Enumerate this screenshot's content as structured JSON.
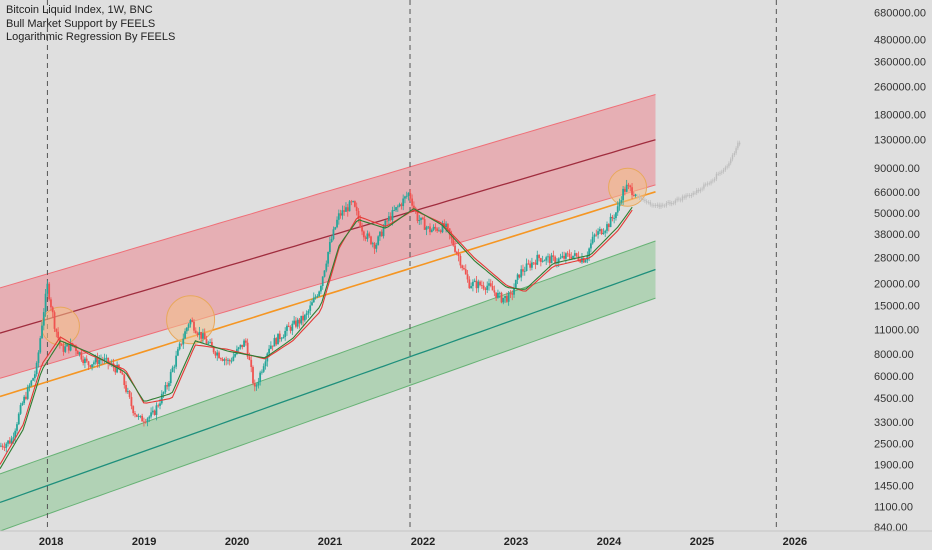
{
  "legend": [
    "Bitcoin Liquid Index, 1W, BNC",
    "Bull Market Support by FEELS",
    "Logarithmic Regression By FEELS"
  ],
  "colors": {
    "background": "#dfdfdf",
    "upper_band_fill": "#e8a7ad",
    "upper_band_edge": "#ef6f77",
    "upper_band_mid": "#a02d3e",
    "lower_band_fill": "#a9d0ae",
    "lower_band_edge": "#67b275",
    "lower_band_mid": "#1e8f7c",
    "fair_value": "#f59623",
    "bull_support_sma": "#e53935",
    "bull_support_ema": "#2e7d32",
    "candle_up": "#26a69a",
    "candle_down": "#ef5350",
    "projection": "#bdbdbd",
    "highlight_circle": "#f4c089"
  },
  "chart_data": {
    "type": "candlestick",
    "title": "Bitcoin Liquid Index, 1W, BNC",
    "y_scale": "log",
    "ylim": [
      800,
      800000
    ],
    "xlim": [
      2017.45,
      2026.7
    ],
    "x_ticks": [
      "2018",
      "2019",
      "2020",
      "2021",
      "2022",
      "2023",
      "2024",
      "2025",
      "2026"
    ],
    "y_ticks": [
      "680000.00",
      "480000.00",
      "360000.00",
      "260000.00",
      "180000.00",
      "130000.00",
      "90000.00",
      "66000.00",
      "50000.00",
      "38000.00",
      "28000.00",
      "20000.00",
      "15000.00",
      "11000.00",
      "8000.00",
      "6000.00",
      "4500.00",
      "3300.00",
      "2500.00",
      "1900.00",
      "1450.00",
      "1100.00",
      "840.00"
    ],
    "vertical_markers": [
      2017.96,
      2021.86,
      2025.8
    ],
    "highlight_circles": [
      {
        "x": 2018.1,
        "y": 11500
      },
      {
        "x": 2019.5,
        "y": 12500
      },
      {
        "x": 2024.2,
        "y": 70000
      }
    ],
    "log_regression": {
      "upper_band": {
        "mid": [
          [
            2017.45,
            10500
          ],
          [
            2024.5,
            130000
          ]
        ],
        "half_width_factor": 1.8
      },
      "lower_band": {
        "mid": [
          [
            2017.45,
            1160
          ],
          [
            2024.5,
            24000
          ]
        ],
        "half_width_factor": 1.45
      },
      "fair_value": [
        [
          2017.45,
          4600
        ],
        [
          2024.5,
          66000
        ]
      ]
    },
    "price_anchors": [
      [
        2017.45,
        2400
      ],
      [
        2017.58,
        2600
      ],
      [
        2017.7,
        4200
      ],
      [
        2017.85,
        6500
      ],
      [
        2017.92,
        13000
      ],
      [
        2017.97,
        19500
      ],
      [
        2018.05,
        11500
      ],
      [
        2018.12,
        8500
      ],
      [
        2018.25,
        9000
      ],
      [
        2018.4,
        7000
      ],
      [
        2018.55,
        7500
      ],
      [
        2018.75,
        6400
      ],
      [
        2018.88,
        4000
      ],
      [
        2018.96,
        3400
      ],
      [
        2019.1,
        3600
      ],
      [
        2019.25,
        5200
      ],
      [
        2019.4,
        9000
      ],
      [
        2019.5,
        12500
      ],
      [
        2019.6,
        10500
      ],
      [
        2019.75,
        8500
      ],
      [
        2019.92,
        7200
      ],
      [
        2020.1,
        9500
      ],
      [
        2020.2,
        5000
      ],
      [
        2020.35,
        8800
      ],
      [
        2020.55,
        11000
      ],
      [
        2020.75,
        13000
      ],
      [
        2020.9,
        19000
      ],
      [
        2021.0,
        32000
      ],
      [
        2021.1,
        48000
      ],
      [
        2021.25,
        57000
      ],
      [
        2021.38,
        38000
      ],
      [
        2021.5,
        33000
      ],
      [
        2021.62,
        45000
      ],
      [
        2021.75,
        55000
      ],
      [
        2021.86,
        65000
      ],
      [
        2021.95,
        47000
      ],
      [
        2022.08,
        40000
      ],
      [
        2022.25,
        42000
      ],
      [
        2022.4,
        28000
      ],
      [
        2022.5,
        20000
      ],
      [
        2022.7,
        19500
      ],
      [
        2022.85,
        16500
      ],
      [
        2022.95,
        16800
      ],
      [
        2023.05,
        23000
      ],
      [
        2023.25,
        28000
      ],
      [
        2023.45,
        27000
      ],
      [
        2023.6,
        29000
      ],
      [
        2023.75,
        27500
      ],
      [
        2023.85,
        37000
      ],
      [
        2024.0,
        43000
      ],
      [
        2024.1,
        52000
      ],
      [
        2024.15,
        65000
      ],
      [
        2024.2,
        70000
      ],
      [
        2024.28,
        66000
      ]
    ],
    "bull_market_support_sma": [
      [
        2017.45,
        1900
      ],
      [
        2017.7,
        3200
      ],
      [
        2017.9,
        7000
      ],
      [
        2018.1,
        10000
      ],
      [
        2018.4,
        8000
      ],
      [
        2018.8,
        6500
      ],
      [
        2019.0,
        4200
      ],
      [
        2019.3,
        4500
      ],
      [
        2019.55,
        9000
      ],
      [
        2019.9,
        8500
      ],
      [
        2020.3,
        7500
      ],
      [
        2020.6,
        9500
      ],
      [
        2020.9,
        14000
      ],
      [
        2021.1,
        32000
      ],
      [
        2021.3,
        48000
      ],
      [
        2021.6,
        42000
      ],
      [
        2021.9,
        52000
      ],
      [
        2022.2,
        44000
      ],
      [
        2022.55,
        28000
      ],
      [
        2022.9,
        19500
      ],
      [
        2023.1,
        18000
      ],
      [
        2023.4,
        25000
      ],
      [
        2023.8,
        28000
      ],
      [
        2024.1,
        40000
      ],
      [
        2024.25,
        52000
      ]
    ],
    "bull_market_support_ema": [
      [
        2017.45,
        1800
      ],
      [
        2017.7,
        3000
      ],
      [
        2017.9,
        6500
      ],
      [
        2018.1,
        9500
      ],
      [
        2018.4,
        8200
      ],
      [
        2018.8,
        6300
      ],
      [
        2019.0,
        4300
      ],
      [
        2019.3,
        4800
      ],
      [
        2019.55,
        9500
      ],
      [
        2019.9,
        8300
      ],
      [
        2020.3,
        7600
      ],
      [
        2020.6,
        9800
      ],
      [
        2020.9,
        15000
      ],
      [
        2021.1,
        33000
      ],
      [
        2021.3,
        46000
      ],
      [
        2021.6,
        41000
      ],
      [
        2021.9,
        53000
      ],
      [
        2022.2,
        43000
      ],
      [
        2022.55,
        27000
      ],
      [
        2022.9,
        19000
      ],
      [
        2023.1,
        18500
      ],
      [
        2023.4,
        26000
      ],
      [
        2023.8,
        29000
      ],
      [
        2024.1,
        42000
      ],
      [
        2024.25,
        54000
      ]
    ],
    "projection": [
      [
        2024.3,
        62000
      ],
      [
        2024.5,
        54000
      ],
      [
        2024.7,
        58000
      ],
      [
        2024.95,
        66000
      ],
      [
        2025.15,
        80000
      ],
      [
        2025.3,
        95000
      ],
      [
        2025.4,
        125000
      ]
    ]
  }
}
